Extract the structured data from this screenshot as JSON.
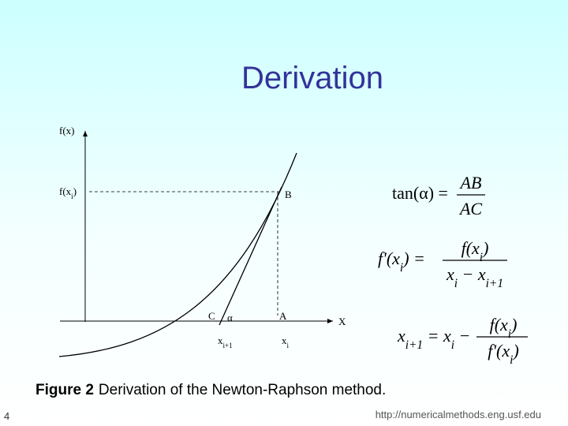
{
  "title": "Derivation",
  "diagram": {
    "y_axis_label": "f(x)",
    "fxi_label": [
      "f(x",
      "i",
      ")"
    ],
    "point_b": "B",
    "point_c": "C",
    "angle": "α",
    "point_a": "A",
    "x_axis_label": "X",
    "xi1_label": [
      "x",
      "i+1"
    ],
    "xi_label": [
      "x",
      "i"
    ]
  },
  "equations": [
    {
      "lhs": [
        "tan(α) ="
      ],
      "numerator": [
        "AB"
      ],
      "denominator": [
        "AC"
      ]
    },
    {
      "lhs": [
        "f'(x",
        "i",
        ") ="
      ],
      "numerator": [
        "f(x",
        "i",
        ")"
      ],
      "denominator": [
        "x",
        "i",
        " − x",
        "i+1"
      ]
    },
    {
      "lhs": [
        "x",
        "i+1",
        " = x",
        "i",
        " −"
      ],
      "numerator": [
        "f(x",
        "i",
        ")"
      ],
      "denominator": [
        "f'(x",
        "i",
        ")"
      ]
    }
  ],
  "caption": {
    "label": "Figure 2",
    "text": "Derivation of the Newton-Raphson method."
  },
  "footer": {
    "page": "4",
    "url": "http://numericalmethods.eng.usf.edu"
  }
}
